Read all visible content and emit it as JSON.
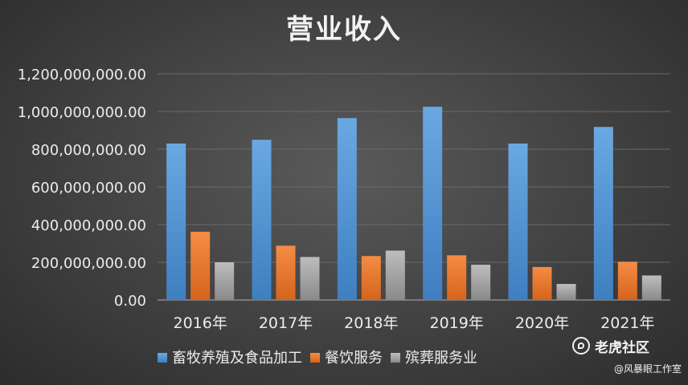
{
  "chart_data": {
    "type": "bar",
    "title": "营业收入",
    "categories": [
      "2016年",
      "2017年",
      "2018年",
      "2019年",
      "2020年",
      "2021年"
    ],
    "series": [
      {
        "name": "畜牧养殖及食品加工",
        "color": "#5b9bd5",
        "values": [
          830000000,
          850000000,
          965000000,
          1025000000,
          830000000,
          918000000
        ]
      },
      {
        "name": "餐饮服务",
        "color": "#ed7d31",
        "values": [
          362000000,
          288000000,
          233000000,
          237000000,
          175000000,
          203000000
        ]
      },
      {
        "name": "殡葬服务业",
        "color": "#a5a5a5",
        "values": [
          200000000,
          228000000,
          262000000,
          187000000,
          85000000,
          130000000
        ]
      }
    ],
    "yticks": [
      "0.00",
      "200,000,000.00",
      "400,000,000.00",
      "600,000,000.00",
      "800,000,000.00",
      "1,000,000,000.00",
      "1,200,000,000.00"
    ],
    "ylim": [
      0,
      1200000000
    ],
    "xlabel": "",
    "ylabel": "",
    "grid": true,
    "legend_position": "bottom"
  },
  "watermark": {
    "logo_text": "老虎社区",
    "handle": "@风暴眼工作室"
  }
}
